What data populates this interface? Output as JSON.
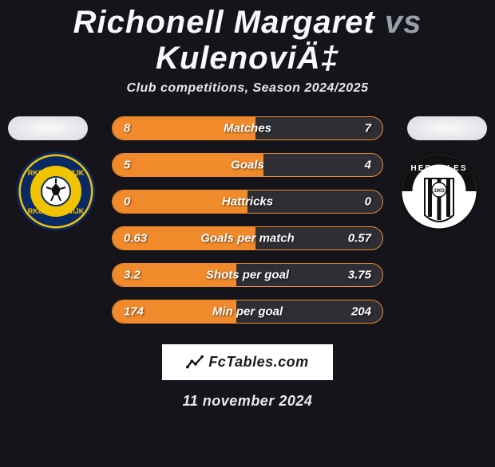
{
  "title": {
    "player1": "Richonell Margaret",
    "vs": "vs",
    "player2": "KulenoviÄ‡"
  },
  "subtitle": "Club competitions, Season 2024/2025",
  "date": "11 november 2024",
  "watermark": "FcTables.com",
  "colors": {
    "background": "#14141a",
    "bar_left_fill": "#f08a2a",
    "bar_right_fill": "#2e2e34",
    "bar_border": "#f08a2a",
    "title_main": "#f7f9fb",
    "title_vs": "#9aa0a8"
  },
  "bars": [
    {
      "label": "Matches",
      "left_val": "8",
      "right_val": "7",
      "left_pct": 53,
      "right_pct": 47
    },
    {
      "label": "Goals",
      "left_val": "5",
      "right_val": "4",
      "left_pct": 56,
      "right_pct": 44
    },
    {
      "label": "Hattricks",
      "left_val": "0",
      "right_val": "0",
      "left_pct": 50,
      "right_pct": 50
    },
    {
      "label": "Goals per match",
      "left_val": "0.63",
      "right_val": "0.57",
      "left_pct": 53,
      "right_pct": 47
    },
    {
      "label": "Shots per goal",
      "left_val": "3.2",
      "right_val": "3.75",
      "left_pct": 46,
      "right_pct": 54
    },
    {
      "label": "Min per goal",
      "left_val": "174",
      "right_val": "204",
      "left_pct": 46,
      "right_pct": 54
    }
  ],
  "teams": {
    "left": {
      "name": "RKC Waalwijk",
      "badge_bg": "#f2c300"
    },
    "right": {
      "name": "Heracles",
      "badge_bg": "#ffffff"
    }
  }
}
